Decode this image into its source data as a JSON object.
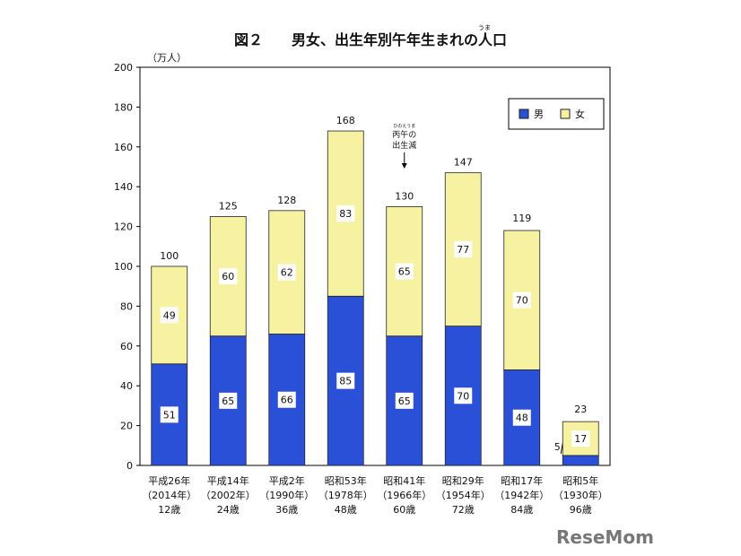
{
  "chart_data": {
    "type": "bar",
    "stacked": true,
    "title": "図２　　男女、出生年別午年生まれの人口",
    "title_ruby": "うま",
    "ylabel": "（万人）",
    "ylim": [
      0,
      200
    ],
    "yticks": [
      0,
      20,
      40,
      60,
      80,
      100,
      120,
      140,
      160,
      180,
      200
    ],
    "categories": [
      [
        "平成26年",
        "（2014年）",
        "12歳"
      ],
      [
        "平成14年",
        "（2002年）",
        "24歳"
      ],
      [
        "平成2年",
        "（1990年）",
        "36歳"
      ],
      [
        "昭和53年",
        "（1978年）",
        "48歳"
      ],
      [
        "昭和41年",
        "（1966年）",
        "60歳"
      ],
      [
        "昭和29年",
        "（1954年）",
        "72歳"
      ],
      [
        "昭和17年",
        "（1942年）",
        "84歳"
      ],
      [
        "昭和5年",
        "（1930年）",
        "96歳"
      ]
    ],
    "series": [
      {
        "name": "男",
        "color": "#2b50d8",
        "values": [
          51,
          65,
          66,
          85,
          65,
          70,
          48,
          5
        ]
      },
      {
        "name": "女",
        "color": "#f6f2a2",
        "values": [
          49,
          60,
          62,
          83,
          65,
          77,
          70,
          17
        ]
      }
    ],
    "totals": [
      100,
      125,
      128,
      168,
      130,
      147,
      119,
      23
    ],
    "legend": "top-right",
    "annotation": {
      "ruby": "ひのえうま",
      "lines": [
        "丙午の",
        "出生減"
      ],
      "category_index": 4
    }
  },
  "watermark": "ReseMom"
}
